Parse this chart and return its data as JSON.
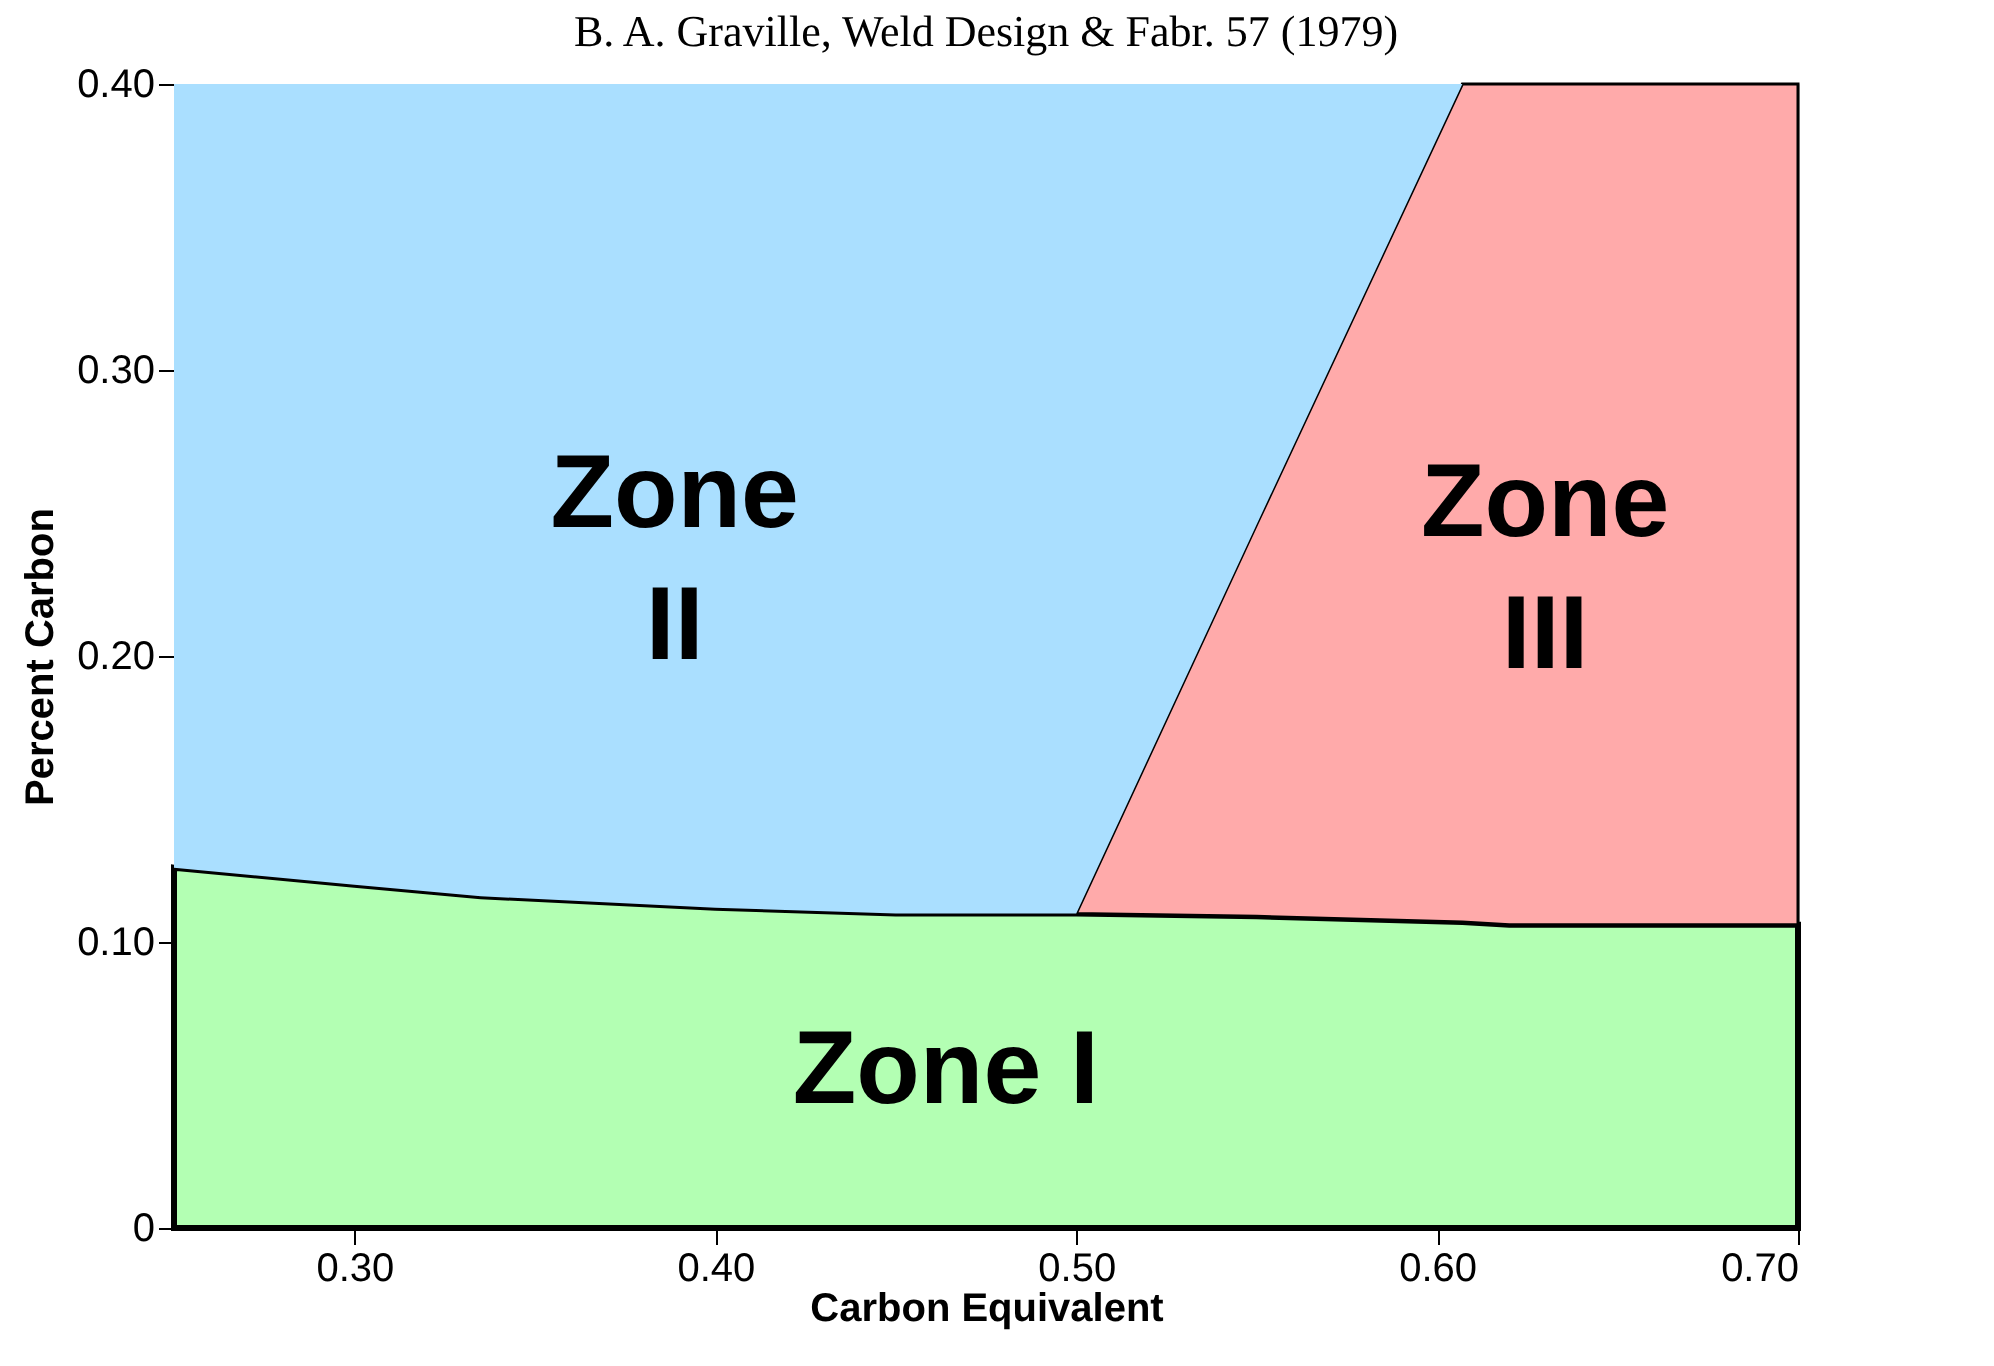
{
  "chart_data": {
    "type": "area",
    "stacked": true,
    "title": "B. A. Graville, Weld Design & Fabr. 57 (1979)",
    "xlabel": "Carbon Equivalent",
    "ylabel": "Percent Carbon",
    "xlim": [
      0.25,
      0.7
    ],
    "xticks": [
      {
        "value": 0.3,
        "label": "0.30"
      },
      {
        "value": 0.4,
        "label": "0.40"
      },
      {
        "value": 0.5,
        "label": "0.50"
      },
      {
        "value": 0.6,
        "label": "0.60"
      },
      {
        "value": 0.7,
        "label": "0.70"
      }
    ],
    "ylim": [
      0,
      0.4
    ],
    "yticks": [
      {
        "value": 0,
        "label": "0"
      },
      {
        "value": 0.1,
        "label": "0.10"
      },
      {
        "value": 0.2,
        "label": "0.20"
      },
      {
        "value": 0.3,
        "label": "0.30"
      },
      {
        "value": 0.4,
        "label": "0.40"
      }
    ],
    "x": [
      0.25,
      0.3,
      0.335,
      0.4,
      0.45,
      0.5,
      0.55,
      0.607,
      0.62,
      0.7
    ],
    "series": [
      {
        "name": "Zone I",
        "color": "#b3ffb3",
        "values": [
          0.126,
          0.12,
          0.116,
          0.112,
          0.11,
          0.11,
          0.109,
          0.107,
          0.106,
          0.106
        ]
      },
      {
        "name": "Zone III",
        "color": "#ffaaaa",
        "values": [
          0,
          0,
          0,
          0,
          0,
          0,
          0.137,
          0.293,
          0.294,
          0.294
        ]
      },
      {
        "name": "Zone II",
        "color": "#aadfff",
        "values": [
          0.274,
          0.28,
          0.284,
          0.288,
          0.29,
          0.29,
          0.154,
          0,
          0,
          0
        ]
      }
    ]
  }
}
